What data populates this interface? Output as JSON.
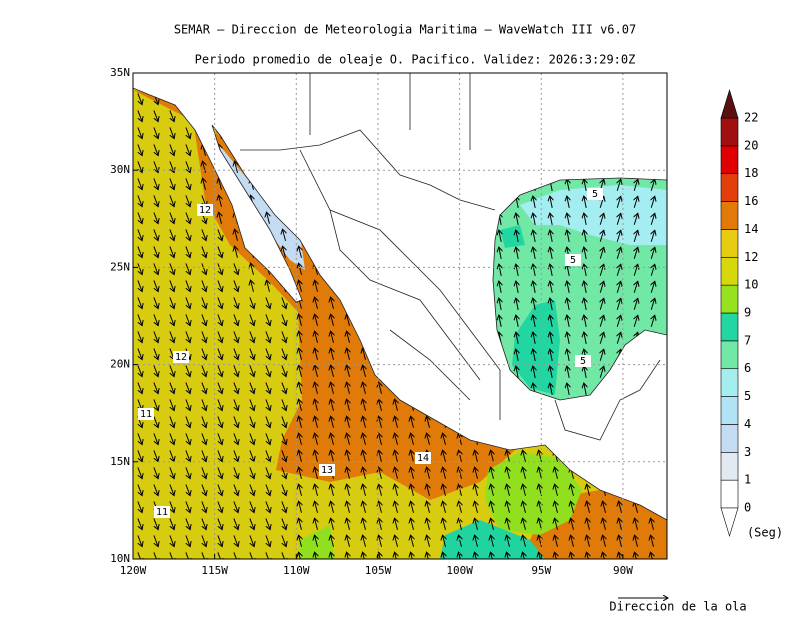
{
  "title": "SEMAR — Direccion de Meteorologia Maritima — WaveWatch III v6.07",
  "subtitle": "Periodo promedio de oleaje O. Pacifico. Validez: 2026:3:29:0Z",
  "map": {
    "xlim": [
      -120,
      -87.3
    ],
    "ylim": [
      10,
      35
    ],
    "xticks": [
      {
        "value": -120,
        "label": "120W"
      },
      {
        "value": -115,
        "label": "115W"
      },
      {
        "value": -110,
        "label": "110W"
      },
      {
        "value": -105,
        "label": "105W"
      },
      {
        "value": -100,
        "label": "100W"
      },
      {
        "value": -95,
        "label": "95W"
      },
      {
        "value": -90,
        "label": "90W"
      }
    ],
    "yticks": [
      {
        "value": 10,
        "label": "10N"
      },
      {
        "value": 15,
        "label": "15N"
      },
      {
        "value": 20,
        "label": "20N"
      },
      {
        "value": 25,
        "label": "25N"
      },
      {
        "value": 30,
        "label": "30N"
      },
      {
        "value": 35,
        "label": "35N"
      }
    ],
    "grid": true,
    "contour_labels": [
      "12",
      "12",
      "11",
      "11",
      "13",
      "14",
      "5",
      "5",
      "5"
    ]
  },
  "colorbar": {
    "levels": [
      0,
      1,
      3,
      4,
      5,
      6,
      7,
      9,
      10,
      12,
      14,
      16,
      18,
      20,
      22
    ],
    "colors": [
      "#ffffff",
      "#e1e9f1",
      "#c4dcf2",
      "#b1e2f5",
      "#a4eef2",
      "#72e8a6",
      "#22d6a2",
      "#96e21e",
      "#d6d80c",
      "#e6cc10",
      "#e27a0a",
      "#e23e0c",
      "#e00000",
      "#a01010"
    ],
    "under_color": "#ffffff",
    "over_color": "#5a1010",
    "unit": "(Seg)"
  },
  "legend": "Direccion de la ola"
}
